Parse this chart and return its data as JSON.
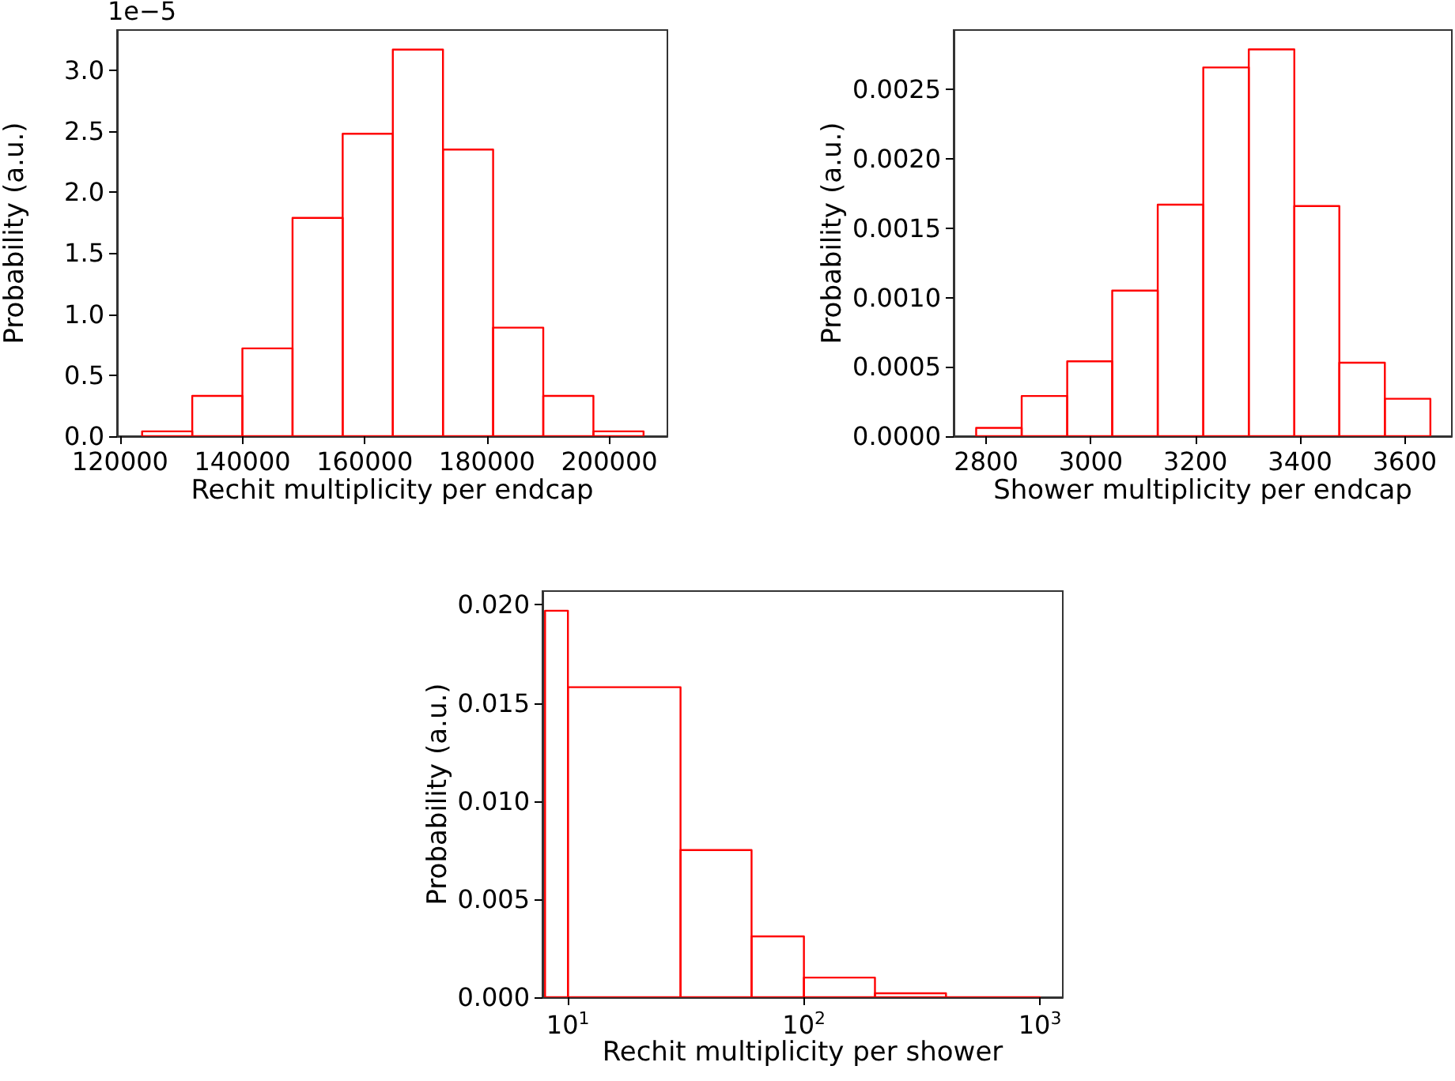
{
  "chart_data": [
    {
      "type": "histogram",
      "xlabel": "Rechit multiplicity per endcap",
      "ylabel": "Probability (a.u.)",
      "annotations": [
        "1e−5"
      ],
      "color": "#ff0000",
      "bins": [
        123600,
        131800,
        140000,
        148200,
        156400,
        164600,
        172800,
        181000,
        189200,
        197400,
        205600
      ],
      "values": [
        0.04,
        0.33,
        0.72,
        1.79,
        2.48,
        3.17,
        2.35,
        0.89,
        0.33,
        0.04
      ],
      "xlim": [
        119500,
        209500
      ],
      "xticks": [
        120000,
        140000,
        160000,
        180000,
        200000
      ],
      "ylim": [
        0,
        3.33
      ],
      "yticks": [
        {
          "value": 0,
          "label": "0.0"
        },
        {
          "value": 0.5,
          "label": "0.5"
        },
        {
          "value": 1,
          "label": "1.0"
        },
        {
          "value": 1.5,
          "label": "1.5"
        },
        {
          "value": 2,
          "label": "2.0"
        },
        {
          "value": 2.5,
          "label": "2.5"
        },
        {
          "value": 3,
          "label": "3.0"
        }
      ]
    },
    {
      "type": "histogram",
      "xlabel": "Shower multiplicity per endcap",
      "ylabel": "Probability (a.u.)",
      "color": "#ff0000",
      "bins": [
        2781,
        2868,
        2955,
        3041,
        3128,
        3215,
        3302,
        3389,
        3475,
        3562,
        3649
      ],
      "values": [
        6e-05,
        0.00029,
        0.00054,
        0.00105,
        0.00167,
        0.00266,
        0.00279,
        0.00166,
        0.00053,
        0.00027
      ],
      "xlim": [
        2738,
        3690
      ],
      "xticks": [
        2800,
        3000,
        3200,
        3400,
        3600
      ],
      "ylim": [
        0,
        0.00293
      ],
      "yticks": [
        {
          "value": 0,
          "label": "0.0000"
        },
        {
          "value": 0.0005,
          "label": "0.0005"
        },
        {
          "value": 0.001,
          "label": "0.0010"
        },
        {
          "value": 0.0015,
          "label": "0.0015"
        },
        {
          "value": 0.002,
          "label": "0.0020"
        },
        {
          "value": 0.0025,
          "label": "0.0025"
        }
      ]
    },
    {
      "type": "histogram",
      "xlabel": "Rechit multiplicity per shower",
      "ylabel": "Probability (a.u.)",
      "color": "#ff0000",
      "log": "x",
      "bins": [
        8,
        10,
        30,
        60,
        100,
        200,
        400,
        1000
      ],
      "values": [
        0.0197,
        0.0158,
        0.0075,
        0.0031,
        0.001,
        0.0002,
        0
      ],
      "xlim": [
        7.8,
        1250
      ],
      "xticks": [
        {
          "value": 10,
          "label": "10$^{1}$"
        },
        {
          "value": 100,
          "label": "10$^{2}$"
        },
        {
          "value": 1000,
          "label": "10$^{3}$"
        }
      ],
      "ylim": [
        0,
        0.0207
      ],
      "yticks": [
        {
          "value": 0,
          "label": "0.000"
        },
        {
          "value": 0.005,
          "label": "0.005"
        },
        {
          "value": 0.01,
          "label": "0.010"
        },
        {
          "value": 0.015,
          "label": "0.015"
        },
        {
          "value": 0.02,
          "label": "0.020"
        }
      ]
    }
  ]
}
